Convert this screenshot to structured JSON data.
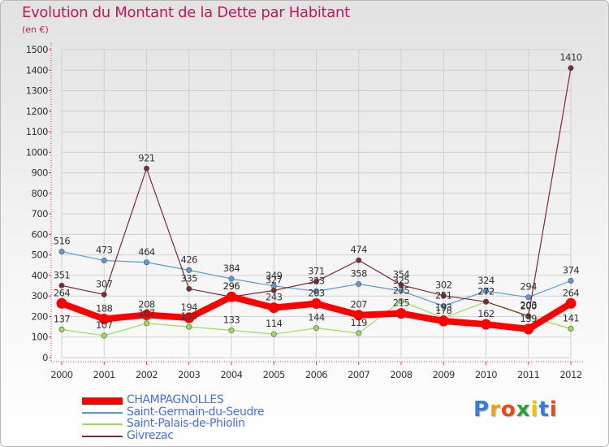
{
  "header": {
    "title": "Evolution du Montant de la Dette par Habitant",
    "unit": "(en €)"
  },
  "brand": {
    "logo_text": "Proxiti",
    "letter_colors": [
      "#3a7bd5",
      "#e8a317",
      "#e64a19",
      "#2e9e44",
      "#f2c200",
      "#3a7bd5",
      "#e64a19"
    ]
  },
  "colors": {
    "title": "#c2185b",
    "axis": "#e0306a",
    "grid": "#d0d0d0"
  },
  "chart_data": {
    "type": "line",
    "title": "Evolution du Montant de la Dette par Habitant",
    "subtitle": "(en €)",
    "xlabel": "",
    "ylabel": "",
    "ylim": [
      0,
      1500
    ],
    "yticks": [
      0,
      100,
      200,
      300,
      400,
      500,
      600,
      700,
      800,
      900,
      1000,
      1100,
      1200,
      1300,
      1400,
      1500
    ],
    "grid": true,
    "legend_position": "bottom-left",
    "categories": [
      "2000",
      "2001",
      "2002",
      "2003",
      "2004",
      "2005",
      "2006",
      "2007",
      "2008",
      "2009",
      "2010",
      "2011",
      "2012"
    ],
    "series": [
      {
        "name": "Saint-Germain-du-Seudre",
        "color": "#5b9bd5",
        "values": [
          516,
          473,
          464,
          426,
          384,
          349,
          323,
          358,
          325,
          251,
          324,
          294,
          374
        ],
        "labels": [
          "516",
          "473",
          "464",
          "426",
          "384",
          "349",
          "323",
          "358",
          "325",
          "251",
          "324",
          "294",
          "374"
        ]
      },
      {
        "name": "Saint-Palais-de-Phiolin",
        "color": "#99dd55",
        "values": [
          137,
          107,
          167,
          150,
          133,
          114,
          144,
          119,
          275,
          193,
          272,
          200,
          141
        ],
        "labels": [
          "137",
          "107",
          "167",
          "150",
          "133",
          "114",
          "144",
          "119",
          "275",
          "193",
          "272",
          "200",
          "141"
        ]
      },
      {
        "name": "Givrezac",
        "color": "#7b2a35",
        "values": [
          351,
          307,
          921,
          335,
          296,
          327,
          371,
          474,
          354,
          302,
          272,
          203,
          1410
        ],
        "labels": [
          "351",
          "307",
          "921",
          "335",
          "296",
          "327",
          "371",
          "474",
          "354",
          "302",
          "272",
          "203",
          "1410"
        ]
      },
      {
        "name": "CHAMPAGNOLLES",
        "color": "#ff0000",
        "emphasis": true,
        "values": [
          264,
          188,
          208,
          194,
          296,
          243,
          263,
          207,
          215,
          178,
          162,
          139,
          264
        ],
        "labels": [
          "264",
          "188",
          "208",
          "194",
          "296",
          "243",
          "263",
          "207",
          "215",
          "178",
          "162",
          "139",
          "264"
        ]
      }
    ],
    "legend": [
      "CHAMPAGNOLLES",
      "Saint-Germain-du-Seudre",
      "Saint-Palais-de-Phiolin",
      "Givrezac"
    ]
  }
}
